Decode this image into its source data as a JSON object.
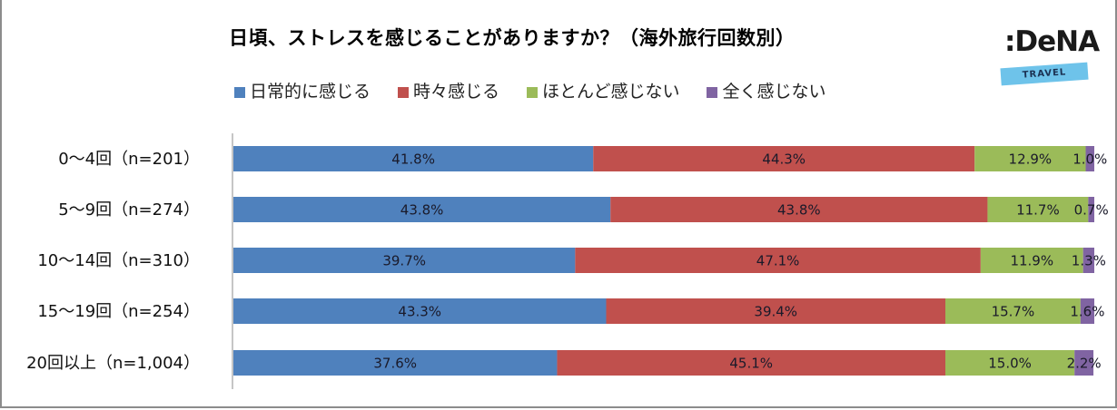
{
  "title": "日頃、ストレスを感じることがありますか？（海外旅行回数別）",
  "logo": {
    "brand": ":DeNA",
    "sub": "TRAVEL"
  },
  "chart_data": {
    "type": "bar",
    "orientation": "horizontal",
    "stacked": true,
    "title": "日頃、ストレスを感じることがありますか？（海外旅行回数別）",
    "xlabel": "",
    "ylabel": "",
    "xlim": [
      0,
      100
    ],
    "grid": false,
    "legend_position": "top",
    "categories": [
      "0～4回（n=201）",
      "5～9回（n=274）",
      "10～14回（n=310）",
      "15～19回（n=254）",
      "20回以上（n=1,004）"
    ],
    "series": [
      {
        "name": "日常的に感じる",
        "color": "#4f81bd",
        "values": [
          41.8,
          43.8,
          39.7,
          43.3,
          37.6
        ]
      },
      {
        "name": "時々感じる",
        "color": "#c0504d",
        "values": [
          44.3,
          43.8,
          47.1,
          39.4,
          45.1
        ]
      },
      {
        "name": "ほとんど感じない",
        "color": "#9bbb59",
        "values": [
          12.9,
          11.7,
          11.9,
          15.7,
          15.0
        ]
      },
      {
        "name": "全く感じない",
        "color": "#8064a2",
        "values": [
          1.0,
          0.7,
          1.3,
          1.6,
          2.2
        ]
      }
    ],
    "value_format": "{v}%"
  }
}
